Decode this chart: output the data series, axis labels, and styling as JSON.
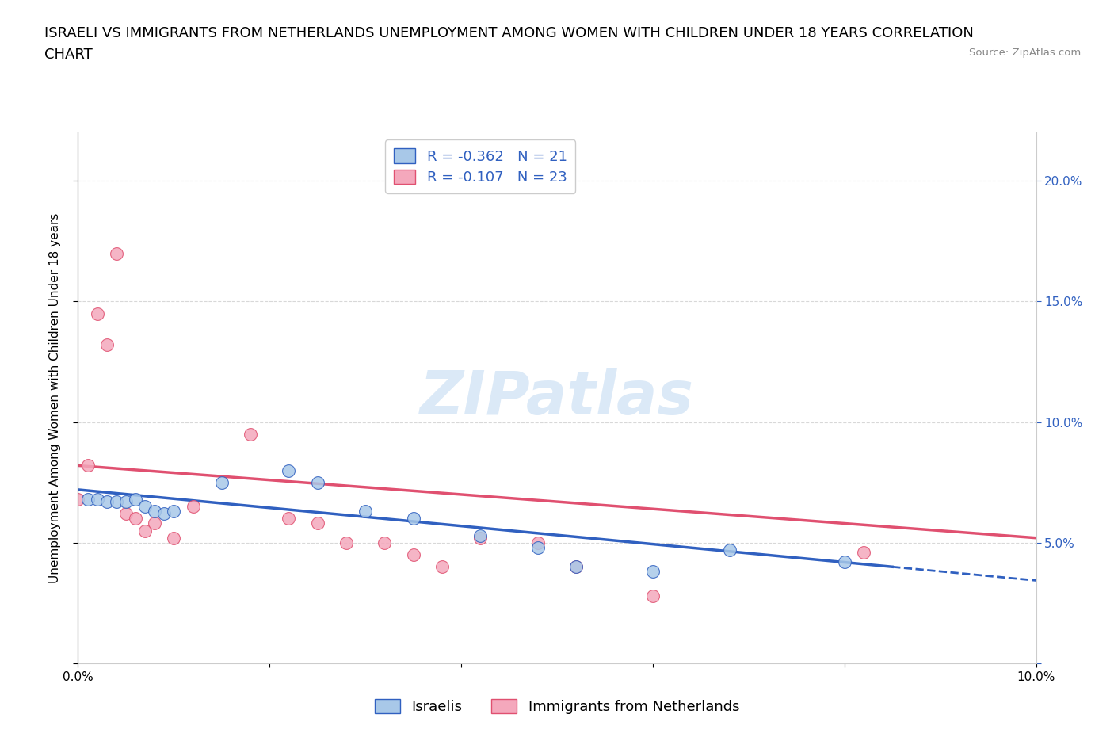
{
  "title_line1": "ISRAELI VS IMMIGRANTS FROM NETHERLANDS UNEMPLOYMENT AMONG WOMEN WITH CHILDREN UNDER 18 YEARS CORRELATION",
  "title_line2": "CHART",
  "source_text": "Source: ZipAtlas.com",
  "ylabel": "Unemployment Among Women with Children Under 18 years",
  "watermark": "ZIPatlas",
  "xmin": 0.0,
  "xmax": 0.1,
  "ymin": 0.0,
  "ymax": 0.22,
  "yticks": [
    0.0,
    0.05,
    0.1,
    0.15,
    0.2
  ],
  "ytick_labels_right": [
    "",
    "5.0%",
    "10.0%",
    "15.0%",
    "20.0%"
  ],
  "xticks": [
    0.0,
    0.02,
    0.04,
    0.06,
    0.08,
    0.1
  ],
  "xtick_labels": [
    "0.0%",
    "",
    "",
    "",
    "",
    "10.0%"
  ],
  "israeli_R": -0.362,
  "israeli_N": 21,
  "netherlands_R": -0.107,
  "netherlands_N": 23,
  "israeli_color": "#a8c8e8",
  "netherlands_color": "#f4a8bc",
  "trend_israeli_color": "#3060c0",
  "trend_netherlands_color": "#e05070",
  "background_color": "#ffffff",
  "grid_color": "#d8d8d8",
  "israeli_x": [
    0.001,
    0.002,
    0.003,
    0.004,
    0.005,
    0.006,
    0.007,
    0.008,
    0.009,
    0.01,
    0.015,
    0.022,
    0.025,
    0.03,
    0.035,
    0.042,
    0.048,
    0.052,
    0.06,
    0.068,
    0.08
  ],
  "israeli_y": [
    0.068,
    0.068,
    0.067,
    0.067,
    0.067,
    0.068,
    0.065,
    0.063,
    0.062,
    0.063,
    0.075,
    0.08,
    0.075,
    0.063,
    0.06,
    0.053,
    0.048,
    0.04,
    0.038,
    0.047,
    0.042
  ],
  "netherlands_x": [
    0.0,
    0.001,
    0.002,
    0.003,
    0.004,
    0.005,
    0.006,
    0.007,
    0.008,
    0.01,
    0.012,
    0.018,
    0.022,
    0.025,
    0.028,
    0.032,
    0.035,
    0.038,
    0.042,
    0.048,
    0.052,
    0.06,
    0.082
  ],
  "netherlands_y": [
    0.068,
    0.082,
    0.145,
    0.132,
    0.17,
    0.062,
    0.06,
    0.055,
    0.058,
    0.052,
    0.065,
    0.095,
    0.06,
    0.058,
    0.05,
    0.05,
    0.045,
    0.04,
    0.052,
    0.05,
    0.04,
    0.028,
    0.046
  ],
  "title_fontsize": 13,
  "axis_label_fontsize": 11,
  "tick_fontsize": 11,
  "legend_fontsize": 13
}
